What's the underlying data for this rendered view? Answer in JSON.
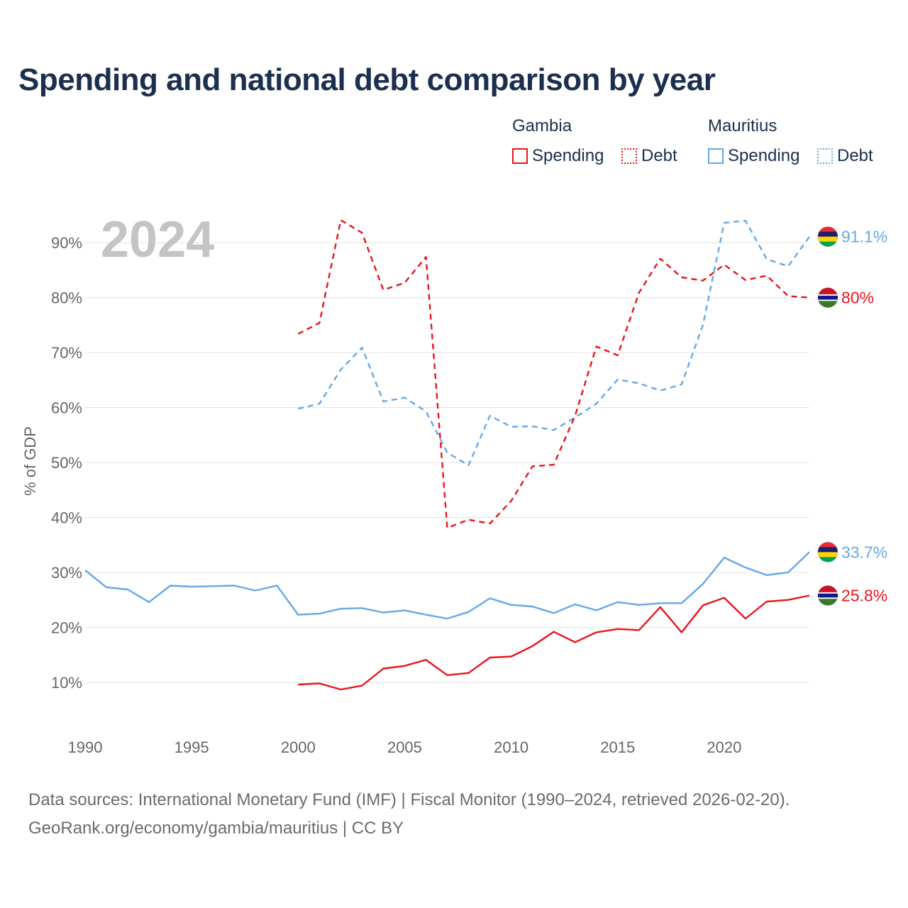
{
  "title": "Spending and national debt comparison by year",
  "legend": {
    "groups": [
      {
        "country": "Gambia",
        "spending": "Spending",
        "debt": "Debt",
        "color": "#e8141c"
      },
      {
        "country": "Mauritius",
        "spending": "Spending",
        "debt": "Debt",
        "color": "#64a8e6"
      }
    ]
  },
  "year_watermark": "2024",
  "source": {
    "line1": "Data sources: International Monetary Fund (IMF) | Fiscal Monitor (1990–2024, retrieved 2026-02-20).",
    "line2": "GeoRank.org/economy/gambia/mauritius | CC BY"
  },
  "chart_data": {
    "type": "line",
    "title": "Spending and national debt comparison by year",
    "xlabel": "",
    "ylabel": "% of GDP",
    "xlim": [
      1990,
      2024
    ],
    "ylim": [
      2.5,
      97.5
    ],
    "grid": true,
    "legend_position": "top-right",
    "x_ticks": [
      1990,
      1995,
      2000,
      2005,
      2010,
      2015,
      2020
    ],
    "x_tick_labels": [
      "1990",
      "1995",
      "2000",
      "2005",
      "2010",
      "2015",
      "2020"
    ],
    "y_ticks": [
      10,
      20,
      30,
      40,
      50,
      60,
      70,
      80,
      90
    ],
    "y_tick_labels": [
      "10%",
      "20%",
      "30%",
      "40%",
      "50%",
      "60%",
      "70%",
      "80%",
      "90%"
    ],
    "series": [
      {
        "name": "Mauritius Debt",
        "country": "Mauritius",
        "measure": "Debt",
        "color": "#64a8e6",
        "dashed": true,
        "end_label": "91.1%",
        "x": [
          2000,
          2001,
          2002,
          2003,
          2004,
          2005,
          2006,
          2007,
          2008,
          2009,
          2010,
          2011,
          2012,
          2013,
          2014,
          2015,
          2016,
          2017,
          2018,
          2019,
          2020,
          2021,
          2022,
          2023,
          2024
        ],
        "values": [
          59.8,
          60.7,
          66.9,
          70.9,
          61.1,
          61.8,
          59.3,
          51.8,
          49.5,
          58.5,
          56.5,
          56.6,
          55.9,
          58.2,
          60.7,
          65.1,
          64.4,
          63.1,
          64.2,
          75.0,
          93.6,
          94.0,
          87.0,
          85.7,
          91.1
        ]
      },
      {
        "name": "Gambia Debt",
        "country": "Gambia",
        "measure": "Debt",
        "color": "#e8141c",
        "dashed": true,
        "end_label": "80%",
        "x": [
          2000,
          2001,
          2002,
          2003,
          2004,
          2005,
          2006,
          2007,
          2008,
          2009,
          2010,
          2011,
          2012,
          2013,
          2014,
          2015,
          2016,
          2017,
          2018,
          2019,
          2020,
          2021,
          2022,
          2023,
          2024
        ],
        "values": [
          73.4,
          75.4,
          94.1,
          91.8,
          81.4,
          82.7,
          87.4,
          38.1,
          39.6,
          38.9,
          43.0,
          49.3,
          49.6,
          58.5,
          71.1,
          69.5,
          80.9,
          87.1,
          83.7,
          83.1,
          86.0,
          83.2,
          84.0,
          80.3,
          80.0
        ]
      },
      {
        "name": "Mauritius Spending",
        "country": "Mauritius",
        "measure": "Spending",
        "color": "#64a8e6",
        "dashed": false,
        "end_label": "33.7%",
        "x": [
          1990,
          1991,
          1992,
          1993,
          1994,
          1995,
          1996,
          1997,
          1998,
          1999,
          2000,
          2001,
          2002,
          2003,
          2004,
          2005,
          2006,
          2007,
          2008,
          2009,
          2010,
          2011,
          2012,
          2013,
          2014,
          2015,
          2016,
          2017,
          2018,
          2019,
          2020,
          2021,
          2022,
          2023,
          2024
        ],
        "values": [
          30.4,
          27.3,
          26.9,
          24.6,
          27.6,
          27.4,
          27.5,
          27.6,
          26.7,
          27.6,
          22.3,
          22.5,
          23.4,
          23.5,
          22.7,
          23.1,
          22.3,
          21.6,
          22.8,
          25.3,
          24.1,
          23.8,
          22.6,
          24.2,
          23.1,
          24.6,
          24.1,
          24.4,
          24.4,
          27.9,
          32.7,
          30.9,
          29.5,
          30.0,
          33.7
        ]
      },
      {
        "name": "Gambia Spending",
        "country": "Gambia",
        "measure": "Spending",
        "color": "#e8141c",
        "dashed": false,
        "end_label": "25.8%",
        "x": [
          2000,
          2001,
          2002,
          2003,
          2004,
          2005,
          2006,
          2007,
          2008,
          2009,
          2010,
          2011,
          2012,
          2013,
          2014,
          2015,
          2016,
          2017,
          2018,
          2019,
          2020,
          2021,
          2022,
          2023,
          2024
        ],
        "values": [
          9.6,
          9.8,
          8.7,
          9.4,
          12.5,
          13.0,
          14.1,
          11.3,
          11.7,
          14.5,
          14.7,
          16.6,
          19.2,
          17.3,
          19.1,
          19.7,
          19.5,
          23.7,
          19.1,
          24.0,
          25.4,
          21.6,
          24.7,
          25.0,
          25.8
        ]
      }
    ]
  }
}
